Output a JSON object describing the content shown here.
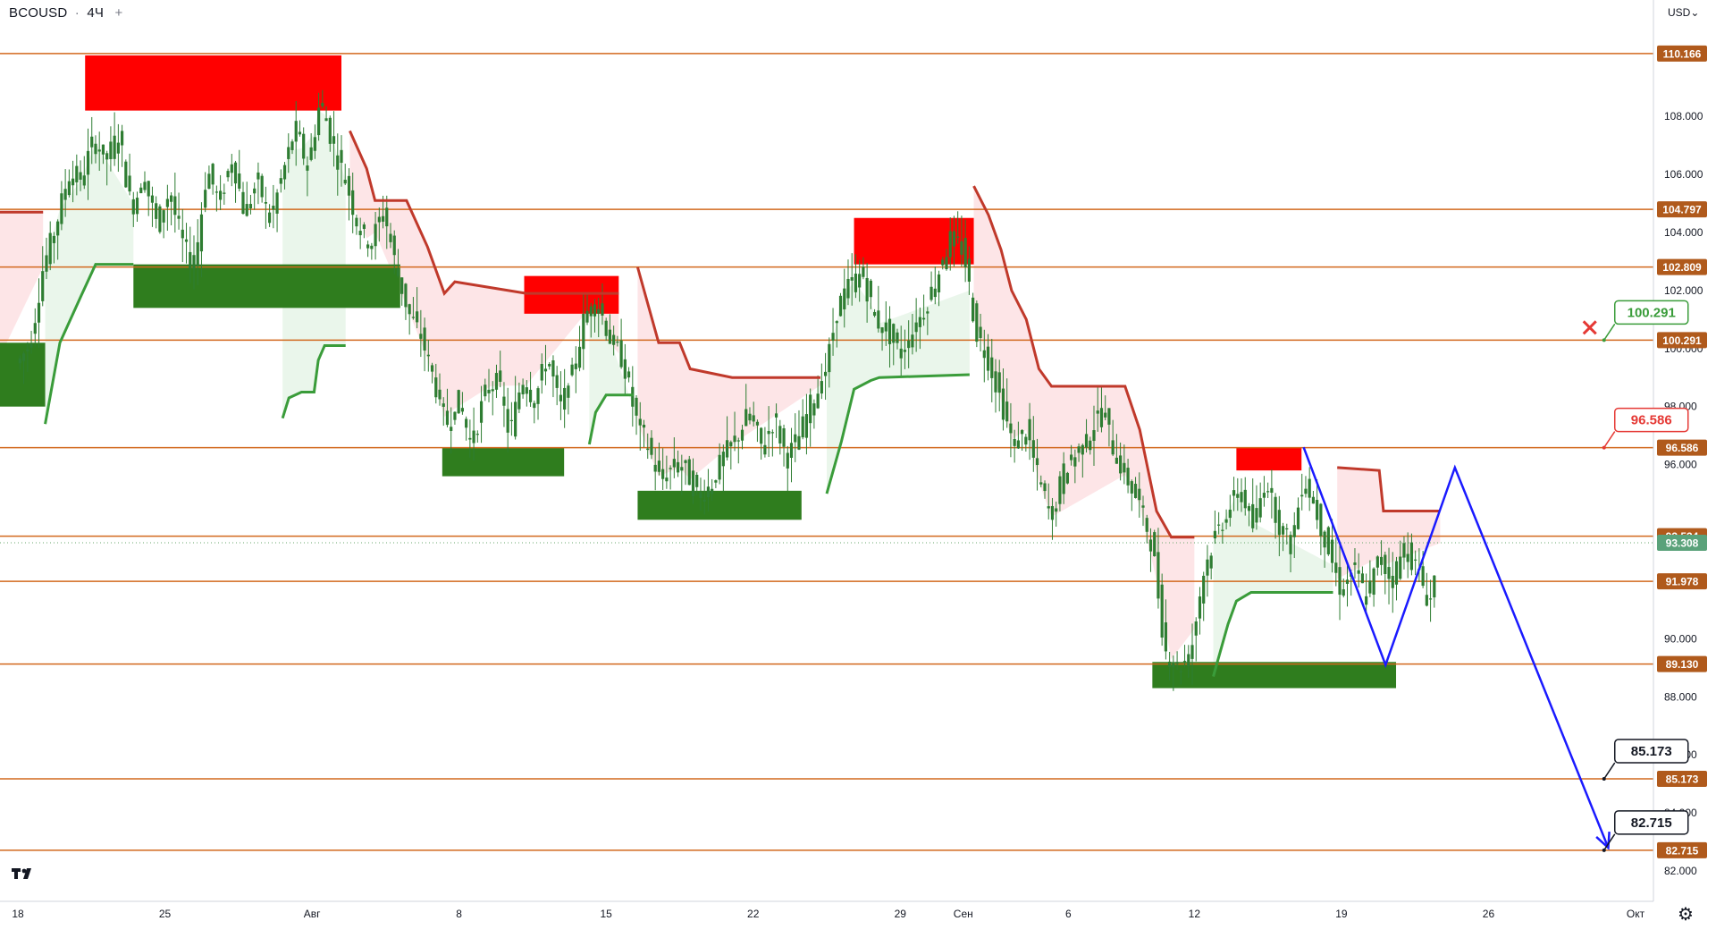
{
  "header": {
    "symbol": "BCOUSD",
    "timeframe": "4Ч",
    "separator": "·",
    "add_symbol": "+"
  },
  "axis": {
    "currency": "USD",
    "currency_caret": "⌄"
  },
  "icons": {
    "logo": "tradingview-logo-icon",
    "settings": "gear-icon"
  },
  "colors": {
    "level_line": "#d2691e",
    "level_label_bg": "#b05a1c",
    "resistance_box": "#ff0000",
    "support_box": "#2f7d1e",
    "trend_down": "#c0392b",
    "trend_up": "#3a9c3a",
    "trend_down_fill": "#fde2e4",
    "trend_up_fill": "#e8f5e9",
    "forecast": "#1a1aff",
    "candle": "#2e7d32"
  },
  "chart_data": {
    "type": "candlestick",
    "title": "BCOUSD · 4Ч",
    "y_range": [
      81.2,
      110.9
    ],
    "y_ticks": [
      "82.000",
      "84.000",
      "86.000",
      "88.000",
      "90.000",
      "96.000",
      "98.000",
      "100.000",
      "102.000",
      "104.000",
      "106.000",
      "108.000"
    ],
    "x_ticks": [
      {
        "label": "18",
        "day": 0
      },
      {
        "label": "25",
        "day": 7
      },
      {
        "label": "Авг",
        "day": 14
      },
      {
        "label": "8",
        "day": 21
      },
      {
        "label": "15",
        "day": 28
      },
      {
        "label": "22",
        "day": 35
      },
      {
        "label": "29",
        "day": 42
      },
      {
        "label": "Сен",
        "day": 45
      },
      {
        "label": "6",
        "day": 50
      },
      {
        "label": "12",
        "day": 56
      },
      {
        "label": "19",
        "day": 63
      },
      {
        "label": "26",
        "day": 70
      },
      {
        "label": "Окт",
        "day": 77
      }
    ],
    "levels": [
      {
        "value": 110.166,
        "label": "110.166"
      },
      {
        "value": 104.797,
        "label": "104.797"
      },
      {
        "value": 102.809,
        "label": "102.809"
      },
      {
        "value": 100.291,
        "label": "100.291"
      },
      {
        "value": 96.586,
        "label": "96.586"
      },
      {
        "value": 93.534,
        "label": "93.534"
      },
      {
        "value": 91.978,
        "label": "91.978"
      },
      {
        "value": 89.13,
        "label": "89.130"
      },
      {
        "value": 85.173,
        "label": "85.173"
      },
      {
        "value": 82.715,
        "label": "82.715"
      }
    ],
    "current_price": {
      "value": 93.308,
      "label": "93.308"
    },
    "callouts": [
      {
        "label": "100.291",
        "value": 100.291,
        "day": 75.5,
        "style": "green",
        "marker": "x-icon"
      },
      {
        "label": "96.586",
        "value": 96.586,
        "day": 75.5,
        "style": "red"
      },
      {
        "label": "85.173",
        "value": 85.173,
        "day": 75.5,
        "style": "black"
      },
      {
        "label": "82.715",
        "value": 82.715,
        "day": 75.5,
        "style": "black"
      }
    ],
    "zones": [
      {
        "kind": "resistance",
        "day_from": 3.2,
        "day_to": 15.4,
        "top": 110.1,
        "bottom": 108.2
      },
      {
        "kind": "support",
        "day_from": 5.5,
        "day_to": 18.2,
        "top": 102.9,
        "bottom": 101.4
      },
      {
        "kind": "support",
        "day_from": -1,
        "day_to": 1.3,
        "top": 100.2,
        "bottom": 98.0
      },
      {
        "kind": "resistance",
        "day_from": 24.1,
        "day_to": 28.6,
        "top": 102.5,
        "bottom": 101.2
      },
      {
        "kind": "support",
        "day_from": 20.2,
        "day_to": 26.0,
        "top": 96.6,
        "bottom": 95.6
      },
      {
        "kind": "support",
        "day_from": 29.5,
        "day_to": 37.3,
        "top": 95.1,
        "bottom": 94.1
      },
      {
        "kind": "resistance",
        "day_from": 39.8,
        "day_to": 45.5,
        "top": 104.5,
        "bottom": 102.9
      },
      {
        "kind": "resistance",
        "day_from": 58.0,
        "day_to": 61.1,
        "top": 96.6,
        "bottom": 95.8
      },
      {
        "kind": "support",
        "day_from": 54.0,
        "day_to": 65.6,
        "top": 89.2,
        "bottom": 88.3
      }
    ],
    "trend_down": [
      [
        [
          -1,
          104.7
        ],
        [
          1.2,
          104.7
        ]
      ],
      [
        [
          15.8,
          107.5
        ],
        [
          16.6,
          106.2
        ],
        [
          17.0,
          105.1
        ],
        [
          18.5,
          105.1
        ],
        [
          19.5,
          103.5
        ],
        [
          20.3,
          101.9
        ],
        [
          20.8,
          102.3
        ],
        [
          22.5,
          102.1
        ],
        [
          24.2,
          101.9
        ],
        [
          27.0,
          101.9
        ],
        [
          28.6,
          101.9
        ]
      ],
      [
        [
          29.5,
          102.8
        ],
        [
          30.5,
          100.2
        ],
        [
          31.5,
          100.2
        ],
        [
          32.0,
          99.3
        ],
        [
          34.0,
          99.0
        ],
        [
          38.2,
          99.0
        ]
      ],
      [
        [
          45.5,
          105.6
        ],
        [
          46.2,
          104.6
        ],
        [
          46.8,
          103.4
        ],
        [
          47.3,
          102.0
        ],
        [
          48.0,
          101.0
        ],
        [
          48.6,
          99.3
        ],
        [
          49.2,
          98.7
        ],
        [
          52.7,
          98.7
        ],
        [
          53.4,
          97.2
        ],
        [
          54.2,
          94.4
        ],
        [
          54.9,
          93.5
        ],
        [
          56.0,
          93.5
        ]
      ],
      [
        [
          62.8,
          95.9
        ],
        [
          64.8,
          95.8
        ],
        [
          65.0,
          94.4
        ],
        [
          67.7,
          94.4
        ]
      ]
    ],
    "trend_up": [
      [
        [
          1.3,
          97.4
        ],
        [
          2.0,
          100.2
        ],
        [
          3.0,
          101.8
        ],
        [
          3.7,
          102.9
        ],
        [
          5.5,
          102.9
        ]
      ],
      [
        [
          12.6,
          97.6
        ],
        [
          12.9,
          98.3
        ],
        [
          13.5,
          98.5
        ],
        [
          14.1,
          98.5
        ],
        [
          14.3,
          99.6
        ],
        [
          14.6,
          100.1
        ],
        [
          15.6,
          100.1
        ]
      ],
      [
        [
          27.2,
          96.7
        ],
        [
          27.5,
          97.8
        ],
        [
          28.0,
          98.4
        ],
        [
          29.3,
          98.4
        ]
      ],
      [
        [
          38.5,
          95.0
        ],
        [
          39.2,
          96.8
        ],
        [
          39.8,
          98.6
        ],
        [
          40.6,
          98.9
        ],
        [
          41.0,
          99.0
        ],
        [
          45.3,
          99.1
        ]
      ],
      [
        [
          56.9,
          88.7
        ],
        [
          57.6,
          90.5
        ],
        [
          58.0,
          91.3
        ],
        [
          58.7,
          91.6
        ],
        [
          62.6,
          91.6
        ]
      ]
    ],
    "forecast": [
      {
        "day": 61.2,
        "value": 96.6
      },
      {
        "day": 65.1,
        "value": 89.1
      },
      {
        "day": 68.4,
        "value": 95.9
      },
      {
        "day": 75.7,
        "value": 82.8
      }
    ],
    "price_path": [
      [
        0,
        99.5
      ],
      [
        0.6,
        100.2
      ],
      [
        1.2,
        102.8
      ],
      [
        1.8,
        104.2
      ],
      [
        2.4,
        106.0
      ],
      [
        3.0,
        105.8
      ],
      [
        3.6,
        107.2
      ],
      [
        4.2,
        106.5
      ],
      [
        4.8,
        107.4
      ],
      [
        5.4,
        104.8
      ],
      [
        6.0,
        105.9
      ],
      [
        6.6,
        104.3
      ],
      [
        7.2,
        105.4
      ],
      [
        7.8,
        103.7
      ],
      [
        8.4,
        102.8
      ],
      [
        9.0,
        106.2
      ],
      [
        9.6,
        105.0
      ],
      [
        10.2,
        106.6
      ],
      [
        10.8,
        104.6
      ],
      [
        11.4,
        105.8
      ],
      [
        12.0,
        104.4
      ],
      [
        12.6,
        106.0
      ],
      [
        13.2,
        107.6
      ],
      [
        13.8,
        106.2
      ],
      [
        14.4,
        108.6
      ],
      [
        15.0,
        107.0
      ],
      [
        15.6,
        105.8
      ],
      [
        16.2,
        104.2
      ],
      [
        16.8,
        103.6
      ],
      [
        17.4,
        104.8
      ],
      [
        18.0,
        102.8
      ],
      [
        18.6,
        101.2
      ],
      [
        19.2,
        100.4
      ],
      [
        19.8,
        98.9
      ],
      [
        20.4,
        97.4
      ],
      [
        21.0,
        98.2
      ],
      [
        21.6,
        96.6
      ],
      [
        22.2,
        98.4
      ],
      [
        22.8,
        99.0
      ],
      [
        23.4,
        97.0
      ],
      [
        24.0,
        99.0
      ],
      [
        24.6,
        98.2
      ],
      [
        25.2,
        99.8
      ],
      [
        25.8,
        97.9
      ],
      [
        26.4,
        99.1
      ],
      [
        27.0,
        101.2
      ],
      [
        27.6,
        101.6
      ],
      [
        28.2,
        100.3
      ],
      [
        28.8,
        99.6
      ],
      [
        29.4,
        97.6
      ],
      [
        30.0,
        96.6
      ],
      [
        30.6,
        95.4
      ],
      [
        31.2,
        96.0
      ],
      [
        31.8,
        95.8
      ],
      [
        32.4,
        94.9
      ],
      [
        33.0,
        95.3
      ],
      [
        33.6,
        96.3
      ],
      [
        34.2,
        96.9
      ],
      [
        34.8,
        97.8
      ],
      [
        35.4,
        96.6
      ],
      [
        36.0,
        97.6
      ],
      [
        36.6,
        96.2
      ],
      [
        37.2,
        97.0
      ],
      [
        37.8,
        98.2
      ],
      [
        38.4,
        99.0
      ],
      [
        39.0,
        101.4
      ],
      [
        39.6,
        102.2
      ],
      [
        40.2,
        102.6
      ],
      [
        40.8,
        101.0
      ],
      [
        41.4,
        100.6
      ],
      [
        42.0,
        99.8
      ],
      [
        42.6,
        100.6
      ],
      [
        43.2,
        101.4
      ],
      [
        43.8,
        102.6
      ],
      [
        44.4,
        103.8
      ],
      [
        45.0,
        103.4
      ],
      [
        45.6,
        100.6
      ],
      [
        46.2,
        99.6
      ],
      [
        46.8,
        98.2
      ],
      [
        47.4,
        96.6
      ],
      [
        48.0,
        97.2
      ],
      [
        48.6,
        95.4
      ],
      [
        49.2,
        94.2
      ],
      [
        49.8,
        95.8
      ],
      [
        50.4,
        96.4
      ],
      [
        51.0,
        97.0
      ],
      [
        51.6,
        98.0
      ],
      [
        52.2,
        96.4
      ],
      [
        52.8,
        95.5
      ],
      [
        53.4,
        94.6
      ],
      [
        54.0,
        93.2
      ],
      [
        54.6,
        89.6
      ],
      [
        55.2,
        89.0
      ],
      [
        55.8,
        89.4
      ],
      [
        56.4,
        92.2
      ],
      [
        57.0,
        93.6
      ],
      [
        57.6,
        94.4
      ],
      [
        58.2,
        95.2
      ],
      [
        58.8,
        93.8
      ],
      [
        59.4,
        95.6
      ],
      [
        60.0,
        94.0
      ],
      [
        60.6,
        93.2
      ],
      [
        61.2,
        95.6
      ],
      [
        61.8,
        94.4
      ],
      [
        62.4,
        93.0
      ],
      [
        63.0,
        91.6
      ],
      [
        63.6,
        92.4
      ],
      [
        64.2,
        91.4
      ],
      [
        64.8,
        92.8
      ],
      [
        65.4,
        92.0
      ],
      [
        66.0,
        93.2
      ],
      [
        66.6,
        92.4
      ],
      [
        67.2,
        91.2
      ],
      [
        67.7,
        93.3
      ]
    ]
  }
}
